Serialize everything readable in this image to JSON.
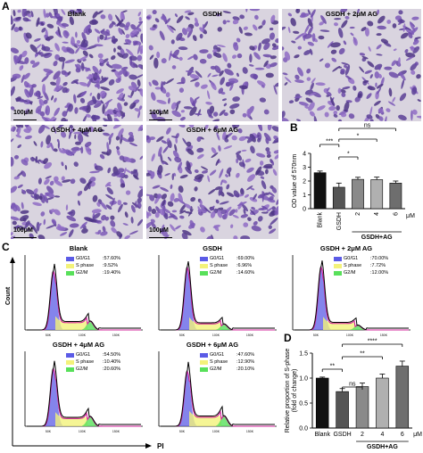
{
  "panel_letters": [
    "A",
    "B",
    "C",
    "D"
  ],
  "panel_a": {
    "images": [
      {
        "title": "Blank",
        "scale": "100μM"
      },
      {
        "title": "GSDH",
        "scale": "100μM"
      },
      {
        "title": "GSDH + 2μM AG",
        "scale": ""
      },
      {
        "title": "GSDH + 4μM AG",
        "scale": "100μM"
      },
      {
        "title": "GSDH + 6μM AG",
        "scale": "100μM"
      }
    ]
  },
  "panel_c": {
    "legend_labels": [
      "G0/G1",
      "S phase",
      "G2/M"
    ],
    "legend_colors": [
      "#5b5be6",
      "#f3f27a",
      "#58e05a"
    ],
    "plots": [
      {
        "title": "Blank",
        "g0g1": ":57.60%",
        "s": ":9.52%",
        "g2m": ":19.40%"
      },
      {
        "title": "GSDH",
        "g0g1": ":69.00%",
        "s": ":6.96%",
        "g2m": ":14.60%"
      },
      {
        "title": "GSDH + 2μM AG",
        "g0g1": ":70.00%",
        "s": ":7.72%",
        "g2m": ":12.00%"
      },
      {
        "title": "GSDH + 4μM AG",
        "g0g1": ":54.50%",
        "s": ":10.40%",
        "g2m": ":20.60%"
      },
      {
        "title": "GSDH + 6μM AG",
        "g0g1": ":47.60%",
        "s": ":12.90%",
        "g2m": ":20.10%"
      }
    ],
    "xlabel": "PI",
    "ylabel": "Count"
  },
  "chart_data": [
    {
      "type": "bar",
      "panel": "B",
      "categories": [
        "Blank",
        "GSDH",
        "2",
        "4",
        "6"
      ],
      "values": [
        2.6,
        1.55,
        2.12,
        2.1,
        1.85
      ],
      "errors": [
        0.12,
        0.3,
        0.15,
        0.18,
        0.15
      ],
      "colors": [
        "#111111",
        "#555555",
        "#8a8a8a",
        "#b0b0b0",
        "#6e6e6e"
      ],
      "ylabel": "OD value of 570nm",
      "ylim": [
        0,
        4
      ],
      "yticks": [
        "0",
        "1",
        "2",
        "3",
        "4"
      ],
      "unit_label": "μM",
      "group_label": "GSDH+AG",
      "significance": [
        "***",
        "*",
        "*",
        "ns"
      ]
    },
    {
      "type": "bar",
      "panel": "D",
      "categories": [
        "Blank",
        "GSDH",
        "2",
        "4",
        "6"
      ],
      "values": [
        1.0,
        0.73,
        0.83,
        1.0,
        1.24
      ],
      "errors": [
        0.02,
        0.06,
        0.07,
        0.08,
        0.1
      ],
      "colors": [
        "#111111",
        "#555555",
        "#8a8a8a",
        "#b0b0b0",
        "#6e6e6e"
      ],
      "ylabel": "Relative proportion of S-phase (fold of change)",
      "ylim": [
        0,
        1.5
      ],
      "yticks": [
        "0.0",
        "0.5",
        "1.0",
        "1.5"
      ],
      "unit_label": "μM",
      "group_label": "GSDH+AG",
      "significance": [
        "**",
        "ns",
        "**",
        "****"
      ]
    }
  ]
}
